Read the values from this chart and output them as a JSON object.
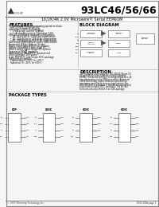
{
  "title_part": "93LC46/56/66",
  "title_sub": "1K/2K/4K 2.0V Microwire® Serial EEPROM",
  "logo_text": "MICROCHIP",
  "features_title": "FEATURES",
  "features": [
    "Single supply with programming operation down",
    "  to 2.0V (VCC = 2.0V to 5.5V)",
    "Low-power CMOS technology",
    "  • 1 mA active current (typical)",
    "  • 1 μA standby current (typical at 5.0V)",
    "ORG pin selectable memory configuration",
    "  • 1K: 64 x 16-bit (default) or 128 x 8-bit organization",
    "  • 2K: 128 x 16-bit or 256 x 8-bit organization",
    "  • 4K: 256 x 16-bit or 512 x 8-bit organization",
    "Self-timed ERASE and WRITE cycles",
    "  (including auto-erase)",
    "Automatic 8-Byte Address Strobe",
    "Power on/off data protection circuitry",
    "Industry standard 3-wire serial I/O",
    "Device select signal allows SPI/MICROWIRE system",
    "Sequential READ capability",
    "Valid data on VALID/NRST pins guaranteed on",
    "  93LC46 and 93LC56",
    "Valid data and V/N status guaranteed on 93LC66",
    "Data retention: 200 years",
    "8-pin PDIP/SOIC and 14-pin SOIC package",
    "  (SOIC = JEDEC and EIAJ standards)",
    "Temperature ranges supported:",
    "  Commercial (C): 0°C to +70°C",
    "  Industrial (I): -40°C to +85°C"
  ],
  "block_title": "BLOCK DIAGRAM",
  "desc_title": "DESCRIPTION",
  "desc_text": [
    "The Microchip Technology Inc. 93LC46/56/66 are 1K,",
    "2K, and 4K bit-wide serial Electrically Erasable",
    "PROMs. The device memory is configured as 64 x 16-",
    "bits, depending on the ORG pin setting. Advanced",
    "CMOS technology makes these devices ideal for",
    "low-power, nonvolatile memory applications. The",
    "93LC46/56/66 is available in standard 8-pin DIP and",
    "8-pin surface-mount SOIC packages. The 4K (66)",
    "functions are only offered in an 14U package."
  ],
  "pkg_title": "PACKAGE TYPES",
  "bg_color": "#f5f5f5",
  "header_bg": "#ffffff",
  "border_color": "#888888",
  "text_color": "#111111",
  "footer_text": "© 1997 Microchip Technology Inc.",
  "footer_ds": "DS91100A-page 1"
}
